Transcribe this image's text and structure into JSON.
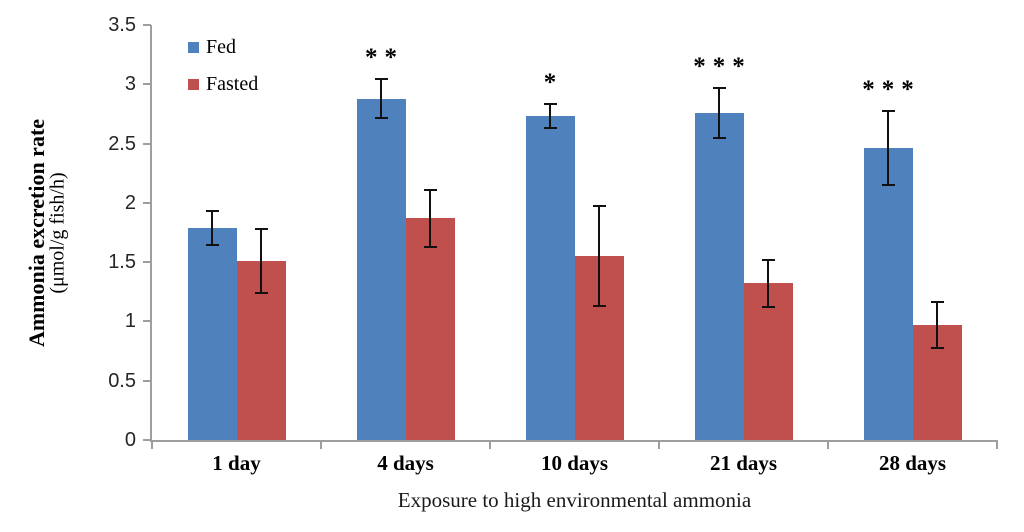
{
  "chart_data": {
    "type": "bar",
    "categories": [
      "1 day",
      "4 days",
      "10 days",
      "21 days",
      "28 days"
    ],
    "series": [
      {
        "name": "Fed",
        "color": "#4F81BD",
        "values": [
          1.79,
          2.88,
          2.73,
          2.76,
          2.46
        ],
        "errors": [
          0.15,
          0.17,
          0.11,
          0.22,
          0.32
        ]
      },
      {
        "name": "Fasted",
        "color": "#C0504D",
        "values": [
          1.51,
          1.87,
          1.55,
          1.32,
          0.97
        ],
        "errors": [
          0.28,
          0.25,
          0.43,
          0.21,
          0.2
        ]
      }
    ],
    "significance_markers": [
      "",
      "**",
      "*",
      "***",
      "***"
    ],
    "significance_over_series": "Fed",
    "xlabel": "Exposure to high environmental ammonia",
    "ylabel_line1": "Ammonia excretion rate",
    "ylabel_line2": "(μmol/g fish/h)",
    "ylim": [
      0,
      3.5
    ],
    "ytick_labels": [
      "0",
      "0.5",
      "1",
      "1.5",
      "2",
      "2.5",
      "3",
      "3.5"
    ],
    "ytick_step": 0.5,
    "grid": "off",
    "legend_position": "top-left-inside",
    "error_bar_color": "#111111",
    "axis_color": "#9e9e9e"
  }
}
